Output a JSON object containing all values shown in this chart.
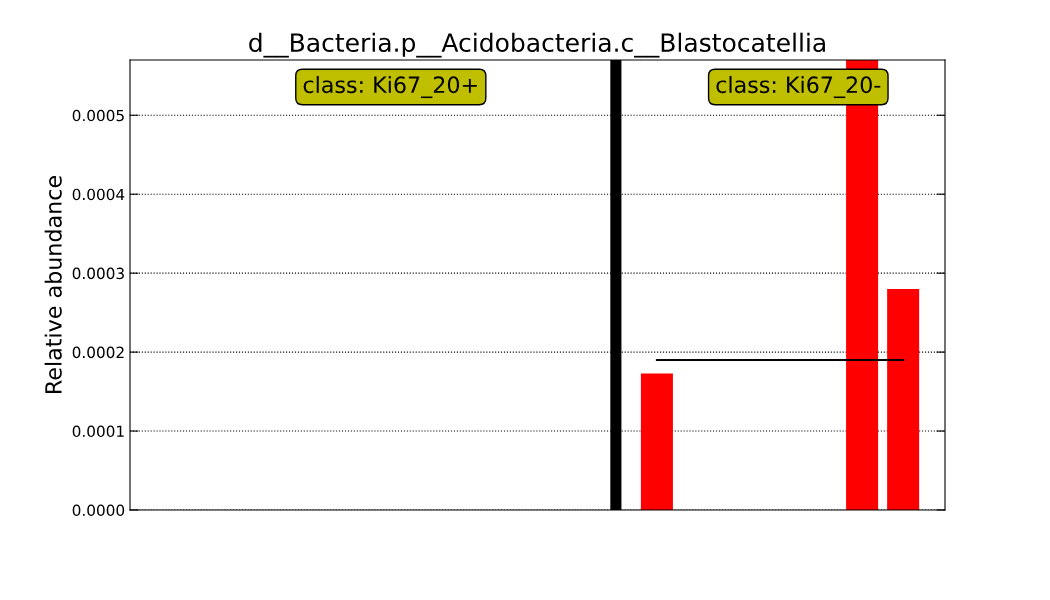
{
  "chart_data": {
    "type": "bar",
    "title": "d__Bacteria.p__Acidobacteria.c__Blastocatellia",
    "ylabel": "Relative abundance",
    "categories": [
      null,
      null,
      null,
      null,
      null,
      null,
      null,
      null,
      null,
      null,
      null,
      null,
      null,
      null,
      null,
      null,
      null,
      null,
      null
    ],
    "series": [
      {
        "color": "#ff0000",
        "values": [
          0,
          0,
          0,
          0,
          0,
          0,
          0,
          0,
          0,
          0,
          0,
          null,
          0.000173,
          0,
          0,
          0,
          0,
          0.00057,
          0.00028
        ]
      }
    ],
    "ylim": [
      0,
      0.00057
    ],
    "yticks": [
      {
        "value": 0,
        "label": "0.0000"
      },
      {
        "value": 0.0001,
        "label": "0.0001"
      },
      {
        "value": 0.0002,
        "label": "0.0002"
      },
      {
        "value": 0.0003,
        "label": "0.0003"
      },
      {
        "value": 0.0004,
        "label": "0.0004"
      },
      {
        "value": 0.0005,
        "label": "0.0005"
      }
    ],
    "ref_lines": [
      {
        "axis": "y",
        "value": 0.00019,
        "color": "#000000"
      }
    ],
    "annotations": [
      "class: Ki67_20+",
      "class: Ki67_20-"
    ],
    "grid": "y"
  }
}
